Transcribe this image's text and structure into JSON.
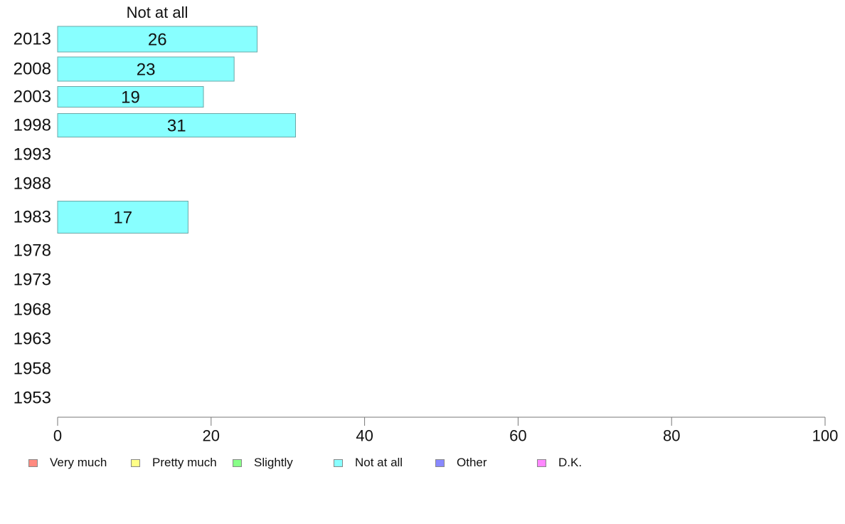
{
  "chart_data": {
    "type": "bar",
    "orientation": "horizontal",
    "title": "Not at all",
    "categories": [
      "2013",
      "2008",
      "2003",
      "1998",
      "1993",
      "1988",
      "1983",
      "1978",
      "1973",
      "1968",
      "1963",
      "1958",
      "1953"
    ],
    "series": [
      {
        "name": "Not at all",
        "values": [
          26,
          23,
          19,
          31,
          null,
          null,
          17,
          null,
          null,
          null,
          null,
          null,
          null
        ]
      }
    ],
    "data_labels": [
      "26",
      "23",
      "19",
      "31",
      "",
      "",
      "17",
      "",
      "",
      "",
      "",
      "",
      ""
    ],
    "xlim": [
      0,
      100
    ],
    "x_ticks": [
      "0",
      "20",
      "40",
      "60",
      "80",
      "100"
    ],
    "grid": false,
    "legend_position": "bottom",
    "legend": [
      {
        "label": "Very much",
        "color": "#ff8a80"
      },
      {
        "label": "Pretty much",
        "color": "#ffff88"
      },
      {
        "label": "Slightly",
        "color": "#88ff88"
      },
      {
        "label": "Not at all",
        "color": "#88ffff"
      },
      {
        "label": "Other",
        "color": "#8888ff"
      },
      {
        "label": "D.K.",
        "color": "#ff88ff"
      }
    ]
  }
}
